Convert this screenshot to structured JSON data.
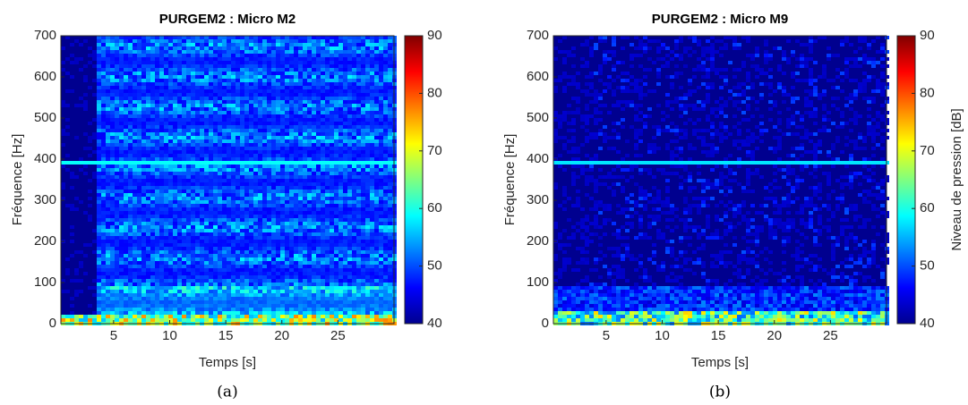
{
  "chart_data": [
    {
      "type": "heatmap",
      "title": "PURGEM2 : Micro M2",
      "x_label": "Temps [s]",
      "y_label": "Fréquence [Hz]",
      "caption": "(a)",
      "xlim": [
        0.3,
        30
      ],
      "xticks": [
        5,
        10,
        15,
        20,
        25
      ],
      "ylim": [
        0,
        700
      ],
      "yticks": [
        0,
        100,
        200,
        300,
        400,
        500,
        600,
        700
      ],
      "clim": [
        40,
        90
      ],
      "cticks": [
        40,
        50,
        60,
        70,
        80,
        90
      ],
      "colormap": "jet"
    },
    {
      "type": "heatmap",
      "title": "PURGEM2 : Micro M9",
      "x_label": "Temps [s]",
      "y_label": "Fréquence [Hz]",
      "caption": "(b)",
      "colorbar_label": "Niveau de pression [dB]",
      "xlim": [
        0.3,
        30
      ],
      "xticks": [
        5,
        10,
        15,
        20,
        25
      ],
      "ylim": [
        0,
        700
      ],
      "yticks": [
        0,
        100,
        200,
        300,
        400,
        500,
        600,
        700
      ],
      "clim": [
        40,
        90
      ],
      "cticks": [
        40,
        50,
        60,
        70,
        80,
        90
      ],
      "colormap": "jet"
    }
  ]
}
